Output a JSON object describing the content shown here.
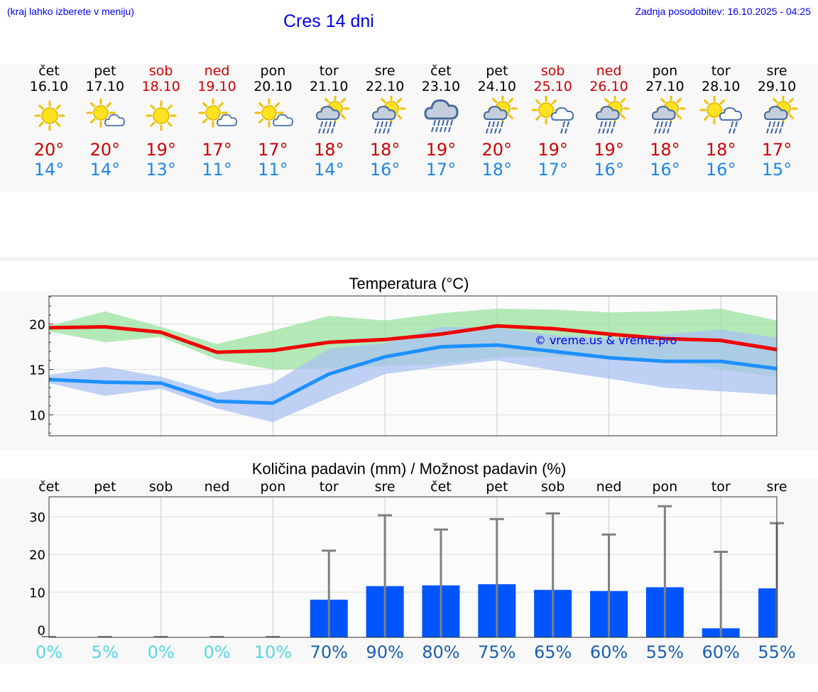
{
  "header": {
    "hint": "(kraj lahko izberete v meniju)",
    "title": "Cres 14 dni",
    "updated": "Zadnja posodobitev: 16.10.2025 - 04:25"
  },
  "days": [
    {
      "name": "čet",
      "date": "16.10",
      "weekend": false,
      "icon": "sun-icon",
      "max": "20°",
      "min": "14°"
    },
    {
      "name": "pet",
      "date": "17.10",
      "weekend": false,
      "icon": "sun-cloud-icon",
      "max": "20°",
      "min": "14°"
    },
    {
      "name": "sob",
      "date": "18.10",
      "weekend": true,
      "icon": "sun-icon",
      "max": "19°",
      "min": "13°"
    },
    {
      "name": "ned",
      "date": "19.10",
      "weekend": true,
      "icon": "sun-cloud-icon",
      "max": "17°",
      "min": "11°"
    },
    {
      "name": "pon",
      "date": "20.10",
      "weekend": false,
      "icon": "sun-cloud-icon",
      "max": "17°",
      "min": "11°"
    },
    {
      "name": "tor",
      "date": "21.10",
      "weekend": false,
      "icon": "sun-rain-icon",
      "max": "18°",
      "min": "14°"
    },
    {
      "name": "sre",
      "date": "22.10",
      "weekend": false,
      "icon": "sun-rain-icon",
      "max": "18°",
      "min": "16°"
    },
    {
      "name": "čet",
      "date": "23.10",
      "weekend": false,
      "icon": "cloud-rain-icon",
      "max": "19°",
      "min": "17°"
    },
    {
      "name": "pet",
      "date": "24.10",
      "weekend": false,
      "icon": "sun-rain-icon",
      "max": "20°",
      "min": "18°"
    },
    {
      "name": "sob",
      "date": "25.10",
      "weekend": true,
      "icon": "sun-light-rain-icon",
      "max": "19°",
      "min": "17°"
    },
    {
      "name": "ned",
      "date": "26.10",
      "weekend": true,
      "icon": "sun-rain-icon",
      "max": "19°",
      "min": "16°"
    },
    {
      "name": "pon",
      "date": "27.10",
      "weekend": false,
      "icon": "sun-rain-icon",
      "max": "18°",
      "min": "16°"
    },
    {
      "name": "tor",
      "date": "28.10",
      "weekend": false,
      "icon": "sun-light-rain-icon",
      "max": "18°",
      "min": "16°"
    },
    {
      "name": "sre",
      "date": "29.10",
      "weekend": false,
      "icon": "sun-rain-icon",
      "max": "17°",
      "min": "15°"
    }
  ],
  "colors": {
    "max_line": "#ee0000",
    "min_line": "#1e90ff",
    "max_band": "#9be3a0",
    "min_band": "#a9c2f2",
    "bar": "#0055ff",
    "whisker": "#808080",
    "pct_low": "#55d8e8",
    "pct_high": "#1a5fb0"
  },
  "chart_data": [
    {
      "type": "line",
      "title": "Temperatura (°C)",
      "watermark": "© vreme.us & vreme.pro",
      "x": [
        0,
        1,
        2,
        3,
        4,
        5,
        6,
        7,
        8,
        9,
        10,
        11,
        12,
        13
      ],
      "ylim": [
        7.7,
        23.1
      ],
      "yticks": [
        10,
        15,
        20
      ],
      "series": [
        {
          "name": "max",
          "values": [
            19.6,
            19.7,
            19.1,
            16.9,
            17.1,
            18.0,
            18.3,
            18.9,
            19.8,
            19.5,
            18.9,
            18.4,
            18.2,
            17.2
          ]
        },
        {
          "name": "min",
          "values": [
            13.9,
            13.6,
            13.5,
            11.5,
            11.3,
            14.5,
            16.4,
            17.5,
            17.7,
            17.0,
            16.3,
            15.9,
            15.9,
            15.1
          ]
        }
      ],
      "bands": [
        {
          "name": "max-range",
          "low": [
            19.2,
            18.0,
            18.6,
            16.1,
            15.0,
            15.1,
            15.4,
            15.6,
            16.4,
            16.4,
            16.4,
            16.0,
            15.0,
            14.2
          ],
          "high": [
            19.8,
            21.4,
            19.7,
            17.8,
            19.3,
            20.9,
            20.4,
            21.2,
            21.7,
            21.6,
            21.3,
            21.4,
            21.7,
            20.4
          ]
        },
        {
          "name": "min-range",
          "low": [
            13.5,
            12.1,
            12.9,
            10.7,
            9.2,
            11.9,
            14.5,
            15.3,
            16.0,
            14.9,
            14.0,
            13.0,
            12.6,
            12.2
          ],
          "high": [
            14.4,
            15.3,
            14.2,
            12.4,
            13.5,
            17.3,
            17.9,
            19.7,
            19.6,
            18.8,
            18.4,
            18.9,
            19.4,
            18.5
          ]
        }
      ]
    },
    {
      "type": "bar",
      "title": "Količina padavin (mm) / Možnost padavin (%)",
      "categories": [
        "čet",
        "pet",
        "sob",
        "ned",
        "pon",
        "tor",
        "sre",
        "čet",
        "pet",
        "sob",
        "ned",
        "pon",
        "tor",
        "sre"
      ],
      "values": [
        0,
        0,
        0,
        0,
        0,
        8,
        11.6,
        11.8,
        12.1,
        10.6,
        10.3,
        11.3,
        0.4,
        11
      ],
      "whisker_high": [
        0,
        0.2,
        0.2,
        0.2,
        0.2,
        21,
        30.4,
        26.6,
        29.4,
        30.9,
        25.3,
        32.8,
        20.7,
        28.3
      ],
      "probability": [
        "0%",
        "5%",
        "0%",
        "0%",
        "10%",
        "70%",
        "90%",
        "80%",
        "75%",
        "65%",
        "60%",
        "55%",
        "60%",
        "55%"
      ],
      "ylim": [
        -2,
        35.3
      ],
      "yticks": [
        0,
        10,
        20,
        30
      ]
    }
  ]
}
